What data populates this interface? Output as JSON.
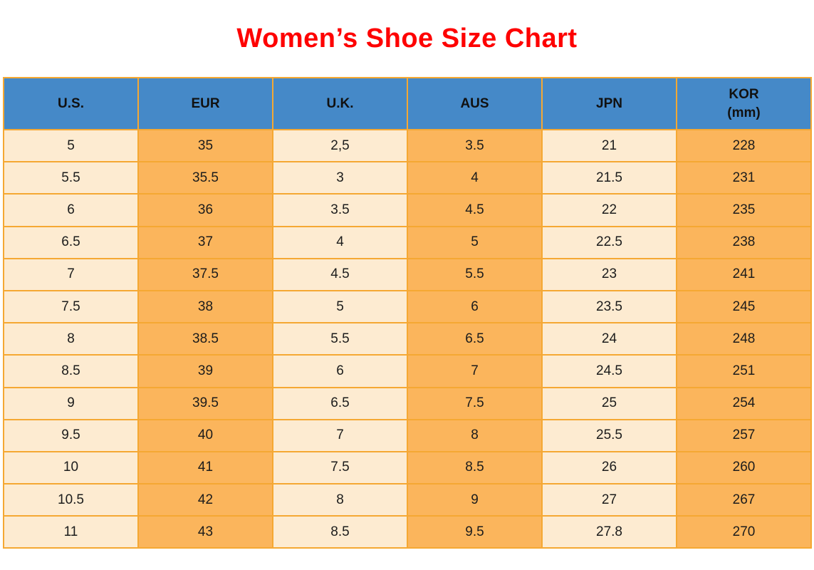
{
  "title": {
    "text": "Women’s Shoe Size Chart",
    "color": "#fe0000"
  },
  "table": {
    "header_bg": "#4589c8",
    "border_color": "#f5a833",
    "light_cell_bg": "#fdebd1",
    "orange_cell_bg": "#fbb55c",
    "columns": [
      {
        "label": "U.S.",
        "shade": "light"
      },
      {
        "label": "EUR",
        "shade": "orange"
      },
      {
        "label": "U.K.",
        "shade": "light"
      },
      {
        "label": "AUS",
        "shade": "orange"
      },
      {
        "label": "JPN",
        "shade": "light"
      },
      {
        "label": "KOR",
        "sub": "(mm)",
        "shade": "orange"
      }
    ]
  },
  "chart_data": {
    "type": "table",
    "title": "Women’s Shoe Size Chart",
    "columns": [
      "U.S.",
      "EUR",
      "U.K.",
      "AUS",
      "JPN",
      "KOR (mm)"
    ],
    "rows": [
      [
        "5",
        "35",
        "2,5",
        "3.5",
        "21",
        "228"
      ],
      [
        "5.5",
        "35.5",
        "3",
        "4",
        "21.5",
        "231"
      ],
      [
        "6",
        "36",
        "3.5",
        "4.5",
        "22",
        "235"
      ],
      [
        "6.5",
        "37",
        "4",
        "5",
        "22.5",
        "238"
      ],
      [
        "7",
        "37.5",
        "4.5",
        "5.5",
        "23",
        "241"
      ],
      [
        "7.5",
        "38",
        "5",
        "6",
        "23.5",
        "245"
      ],
      [
        "8",
        "38.5",
        "5.5",
        "6.5",
        "24",
        "248"
      ],
      [
        "8.5",
        "39",
        "6",
        "7",
        "24.5",
        "251"
      ],
      [
        "9",
        "39.5",
        "6.5",
        "7.5",
        "25",
        "254"
      ],
      [
        "9.5",
        "40",
        "7",
        "8",
        "25.5",
        "257"
      ],
      [
        "10",
        "41",
        "7.5",
        "8.5",
        "26",
        "260"
      ],
      [
        "10.5",
        "42",
        "8",
        "9",
        "27",
        "267"
      ],
      [
        "11",
        "43",
        "8.5",
        "9.5",
        "27.8",
        "270"
      ]
    ]
  }
}
